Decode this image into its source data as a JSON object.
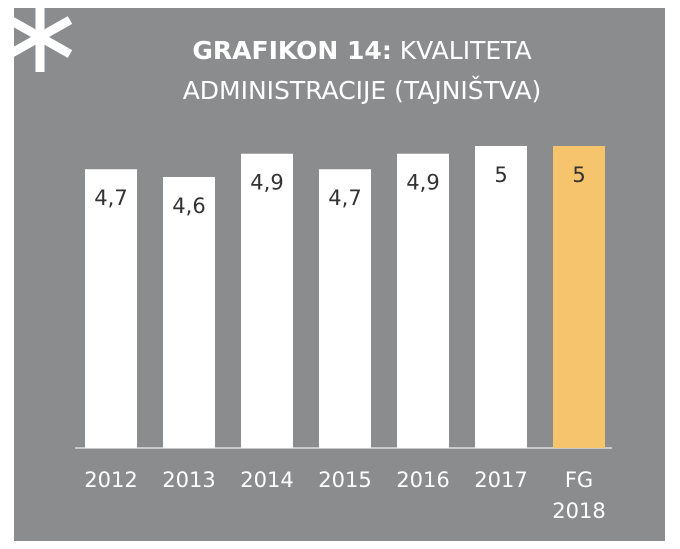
{
  "chart_data": {
    "type": "bar",
    "title_prefix": "GRAFIKON 14:",
    "title": "KVALITETA ADMINISTRACIJE (TAJNIŠTVA)",
    "categories": [
      "2012",
      "2013",
      "2014",
      "2015",
      "2016",
      "2017",
      "FG 2018"
    ],
    "values": [
      4.7,
      4.6,
      4.9,
      4.7,
      4.9,
      5,
      5
    ],
    "value_labels": [
      "4,7",
      "4,6",
      "4,9",
      "4,7",
      "4,9",
      "5",
      "5"
    ],
    "colors": [
      "#ffffff",
      "#ffffff",
      "#ffffff",
      "#ffffff",
      "#ffffff",
      "#ffffff",
      "#f5c46c"
    ],
    "ylim": [
      1.1,
      5
    ]
  }
}
